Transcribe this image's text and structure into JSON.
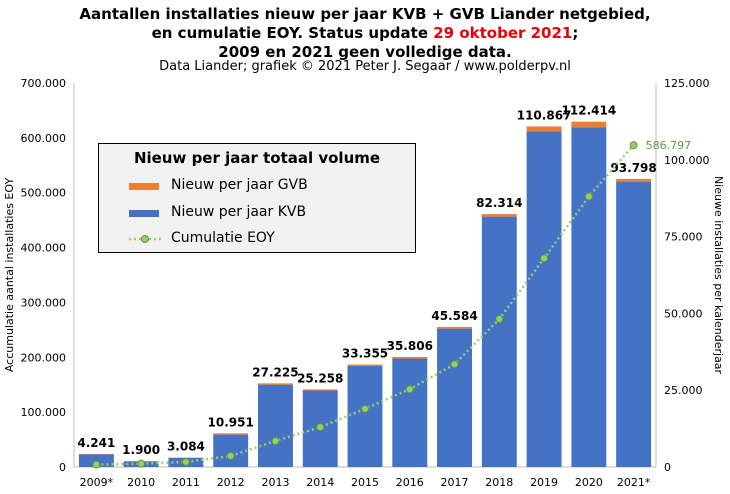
{
  "title": {
    "line1": "Aantallen installaties nieuw per jaar KVB + GVB Liander netgebied,",
    "line2_pre": "en cumulatie EOY. Status update ",
    "line2_date": "29 oktober 2021",
    "line2_post": ";",
    "line3": "2009 en 2021 geen volledige data.",
    "source": "Data Liander;  grafiek © 2021 Peter J. Segaar / www.polderpv.nl"
  },
  "colors": {
    "kvb": "#4472c4",
    "gvb": "#ed7d31",
    "cumulative": "#9acd6a",
    "cum_label": "#5a9b3c",
    "red": "#e8000b"
  },
  "chart_data": {
    "type": "bar",
    "categories": [
      "2009*",
      "2010",
      "2011",
      "2012",
      "2013",
      "2014",
      "2015",
      "2016",
      "2017",
      "2018",
      "2019",
      "2020",
      "2021*"
    ],
    "series": [
      {
        "name": "Nieuw per jaar KVB",
        "axis": "right",
        "values": [
          4100,
          1850,
          3000,
          10550,
          26800,
          24900,
          32950,
          35300,
          45050,
          81500,
          109200,
          110600,
          92900
        ]
      },
      {
        "name": "Nieuw per jaar GVB",
        "axis": "right",
        "values": [
          141,
          50,
          84,
          401,
          425,
          358,
          405,
          506,
          534,
          814,
          1667,
          1814,
          898
        ]
      },
      {
        "name": "Cumulatie EOY",
        "axis": "left",
        "type": "line",
        "values": [
          4241,
          6141,
          9225,
          20176,
          47401,
          72659,
          106014,
          141820,
          187404,
          269718,
          380585,
          492999,
          586797
        ]
      }
    ],
    "totals": [
      "4.241",
      "1.900",
      "3.084",
      "10.951",
      "27.225",
      "25.258",
      "33.355",
      "35.806",
      "45.584",
      "82.314",
      "110.867",
      "112.414",
      "93.798"
    ],
    "final_cumulative_label": "586.797",
    "left_axis": {
      "label": "Accumulatie aantal installaties EOY",
      "ylim": [
        0,
        700000
      ],
      "ticks": [
        "0",
        "100.000",
        "200.000",
        "300.000",
        "400.000",
        "500.000",
        "600.000",
        "700.000"
      ]
    },
    "right_axis": {
      "label": "Nieuwe installaties per kalenderjaar",
      "ylim": [
        0,
        125000
      ],
      "ticks": [
        "0",
        "25.000",
        "50.000",
        "75.000",
        "100.000",
        "125.000"
      ]
    },
    "legend": {
      "title": "Nieuw per jaar totaal volume",
      "items": [
        "Nieuw per jaar GVB",
        "Nieuw per jaar KVB",
        "Cumulatie EOY"
      ],
      "position": "upper-left"
    },
    "grid": false
  }
}
